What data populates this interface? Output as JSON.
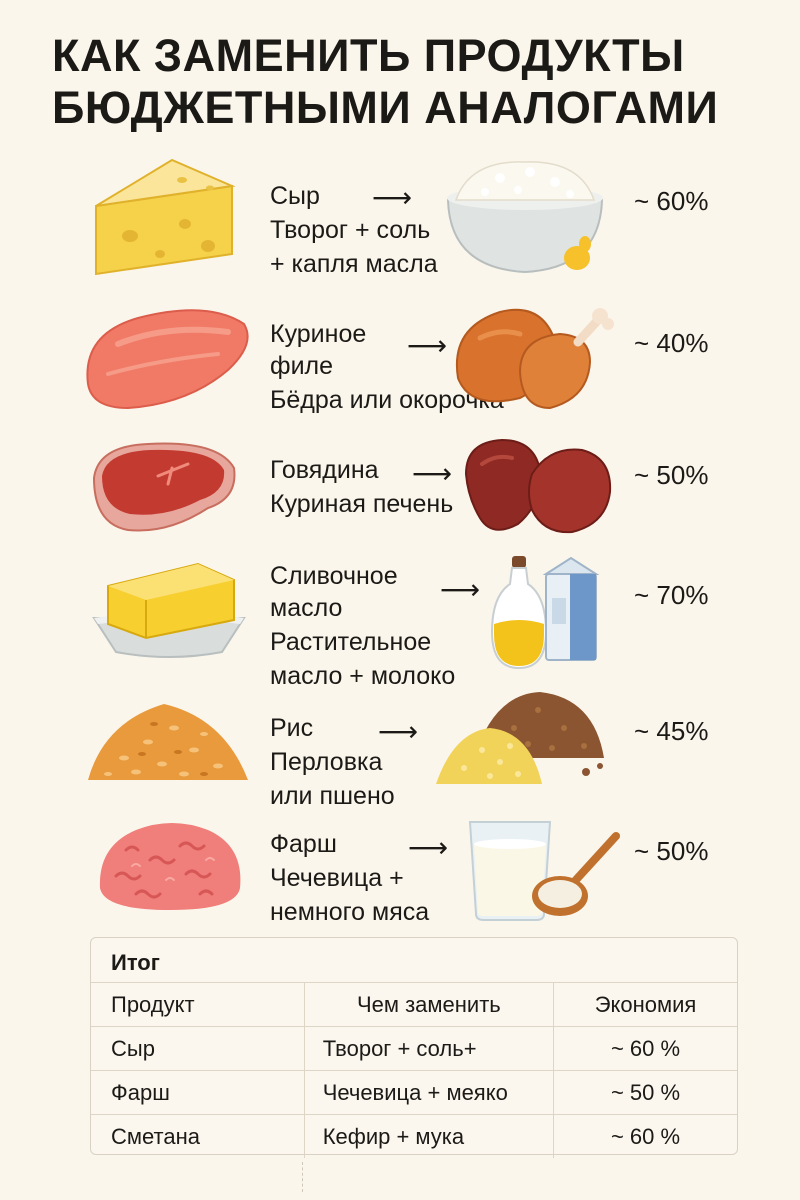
{
  "title": {
    "line1": "КАК ЗАМЕНИТЬ ПРОДУКТЫ",
    "line2": "БЮДЖЕТНЫМИ АНАЛОГАМИ"
  },
  "arrow": "⟶",
  "items": [
    {
      "product": "Сыр",
      "replacement_line1": "Творог + соль",
      "replacement_line2": "+ капля масла",
      "saving": "~ 60%",
      "product_icon": "cheese-wedge-icon",
      "replacement_icon": "cottage-cheese-bowl-icon"
    },
    {
      "product_line1": "Куриное",
      "product_line2": "филе",
      "replacement": "Бёдра или окорочка",
      "saving": "~ 40%",
      "product_icon": "chicken-fillet-icon",
      "replacement_icon": "chicken-legs-icon"
    },
    {
      "product": "Говядина",
      "replacement": "Куриная печень",
      "saving": "~ 50%",
      "product_icon": "beef-steak-icon",
      "replacement_icon": "chicken-liver-icon"
    },
    {
      "product_line1": "Сливочное",
      "product_line2": "масло",
      "replacement_line1": "Растительное",
      "replacement_line2": "масло + молоко",
      "saving": "~ 70%",
      "product_icon": "butter-dish-icon",
      "replacement_icon": "oil-and-milk-icon"
    },
    {
      "product": "Рис",
      "replacement_line1": "Перловка",
      "replacement_line2": "или пшено",
      "saving": "~ 45%",
      "product_icon": "rice-pile-icon",
      "replacement_icon": "barley-millet-icon"
    },
    {
      "product": "Фарш",
      "replacement_line1": "Чечевица +",
      "replacement_line2": "немного мяса",
      "saving": "~ 50%",
      "product_icon": "minced-meat-icon",
      "replacement_icon": "kefir-and-flour-icon"
    }
  ],
  "summary": {
    "title": "Итог",
    "headers": [
      "Продукт",
      "Чем заменить",
      "Экономия"
    ],
    "rows": [
      [
        "Сыр",
        "Творог + соль+",
        "~ 60 %"
      ],
      [
        "Фарш",
        "Чечевица + меяко",
        "~ 50 %"
      ],
      [
        "Сметана",
        "Кефир + мука",
        "~ 60 %"
      ]
    ]
  },
  "colors": {
    "background": "#fbf6ec",
    "cheese": "#f6d24a",
    "meat": "#f07a66",
    "chicken": "#d9722c",
    "beef": "#c23a30",
    "liver": "#8e2a23",
    "butter": "#f7cf2f",
    "rice": "#e89a3c",
    "lentil": "#8a5530",
    "milk": "#ffffff"
  }
}
